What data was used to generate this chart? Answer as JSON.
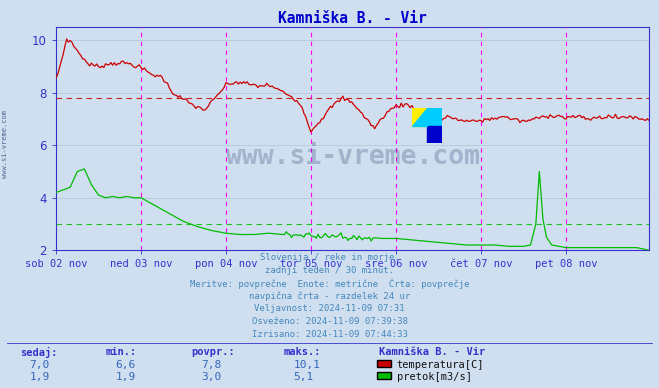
{
  "title": "Kamniška B. - Vir",
  "bg_color": "#d0dff0",
  "ylim": [
    2,
    10.5
  ],
  "yticks": [
    2,
    4,
    6,
    8,
    10
  ],
  "xlabel_dates": [
    "sob 02 nov",
    "ned 03 nov",
    "pon 04 nov",
    "tor 05 nov",
    "sre 06 nov",
    "čet 07 nov",
    "pet 08 nov"
  ],
  "n_points": 336,
  "temp_color": "#cc0000",
  "flow_color": "#00bb00",
  "avg_temp_line": 7.8,
  "avg_flow_line": 3.0,
  "grid_color": "#b0c4d8",
  "vline_color": "#ff00ff",
  "axis_color": "#3333cc",
  "title_color": "#0000cc",
  "watermark_color": "#1a3060",
  "info_text_color": "#4488bb",
  "info_lines": [
    "Slovenija / reke in morje.",
    "zadnji teden / 30 minut.",
    "Meritve: povprečne  Enote: metrične  Črta: povprečje",
    "navpična črta - razdelek 24 ur",
    "Veljavnost: 2024-11-09 07:31",
    "Osveženo: 2024-11-09 07:39:38",
    "Izrisano: 2024-11-09 07:44:33"
  ],
  "table_headers": [
    "sedaj:",
    "min.:",
    "povpr.:",
    "maks.:"
  ],
  "table_row1": [
    "7,0",
    "6,6",
    "7,8",
    "10,1"
  ],
  "table_row2": [
    "1,9",
    "1,9",
    "3,0",
    "5,1"
  ],
  "legend_label1": "temperatura[C]",
  "legend_label2": "pretok[m3/s]",
  "station_name": "Kamniška B. - Vir"
}
